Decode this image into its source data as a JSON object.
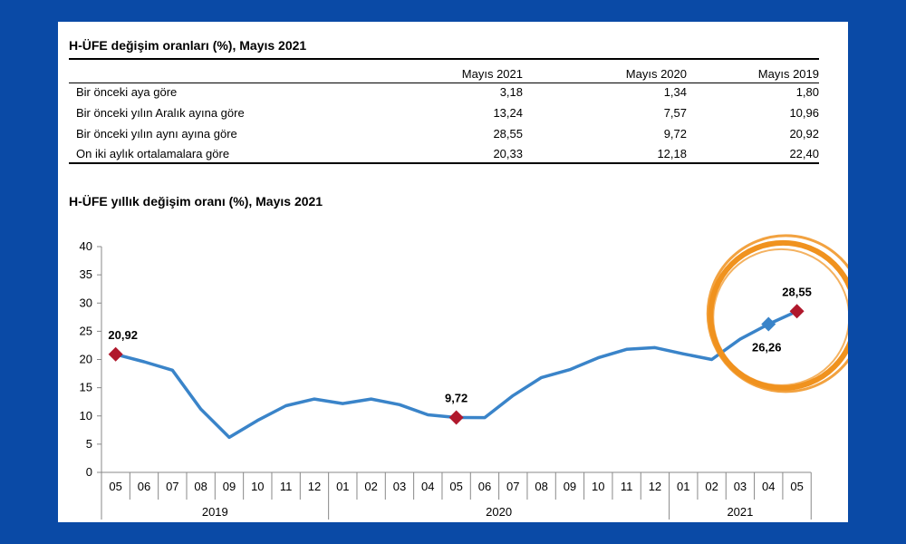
{
  "table": {
    "title": "H-ÜFE değişim oranları (%), Mayıs 2021",
    "columns": [
      "Mayıs 2021",
      "Mayıs 2020",
      "Mayıs 2019"
    ],
    "rows": [
      {
        "label": "Bir önceki aya göre",
        "values": [
          "3,18",
          "1,34",
          "1,80"
        ]
      },
      {
        "label": "Bir önceki yılın Aralık ayına göre",
        "values": [
          "13,24",
          "7,57",
          "10,96"
        ]
      },
      {
        "label": "Bir önceki yılın aynı ayına göre",
        "values": [
          "28,55",
          "9,72",
          "20,92"
        ]
      },
      {
        "label": "On iki aylık ortalamalara göre",
        "values": [
          "20,33",
          "12,18",
          "22,40"
        ]
      }
    ]
  },
  "chart_data": {
    "type": "line",
    "title": "H-ÜFE yıllık değişim oranı (%), Mayıs 2021",
    "xlabel": "",
    "ylabel": "",
    "ylim": [
      0,
      40
    ],
    "yticks": [
      0,
      5,
      10,
      15,
      20,
      25,
      30,
      35,
      40
    ],
    "categories": [
      "05",
      "06",
      "07",
      "08",
      "09",
      "10",
      "11",
      "12",
      "01",
      "02",
      "03",
      "04",
      "05",
      "06",
      "07",
      "08",
      "09",
      "10",
      "11",
      "12",
      "01",
      "02",
      "03",
      "04",
      "05"
    ],
    "year_groups": [
      {
        "label": "2019",
        "start": 0,
        "end": 7
      },
      {
        "label": "2020",
        "start": 8,
        "end": 19
      },
      {
        "label": "2021",
        "start": 20,
        "end": 24
      }
    ],
    "series": [
      {
        "values": [
          20.92,
          19.6,
          18.1,
          11.2,
          6.2,
          9.2,
          11.8,
          13.0,
          12.2,
          13.0,
          12.0,
          10.2,
          9.72,
          9.7,
          13.6,
          16.8,
          18.2,
          20.3,
          21.8,
          22.1,
          21.0,
          20.0,
          23.6,
          26.26,
          28.55
        ],
        "color": "#3a84c9"
      }
    ],
    "annotations": [
      {
        "index": 0,
        "label": "20,92",
        "marker": "diamond",
        "color": "#b0182c"
      },
      {
        "index": 12,
        "label": "9,72",
        "marker": "diamond",
        "color": "#b0182c"
      },
      {
        "index": 23,
        "label": "26,26",
        "marker": "diamond",
        "color": "#3a84c9"
      },
      {
        "index": 24,
        "label": "28,55",
        "marker": "diamond",
        "color": "#b0182c"
      }
    ],
    "highlight_ring_color": "#f0921e"
  }
}
